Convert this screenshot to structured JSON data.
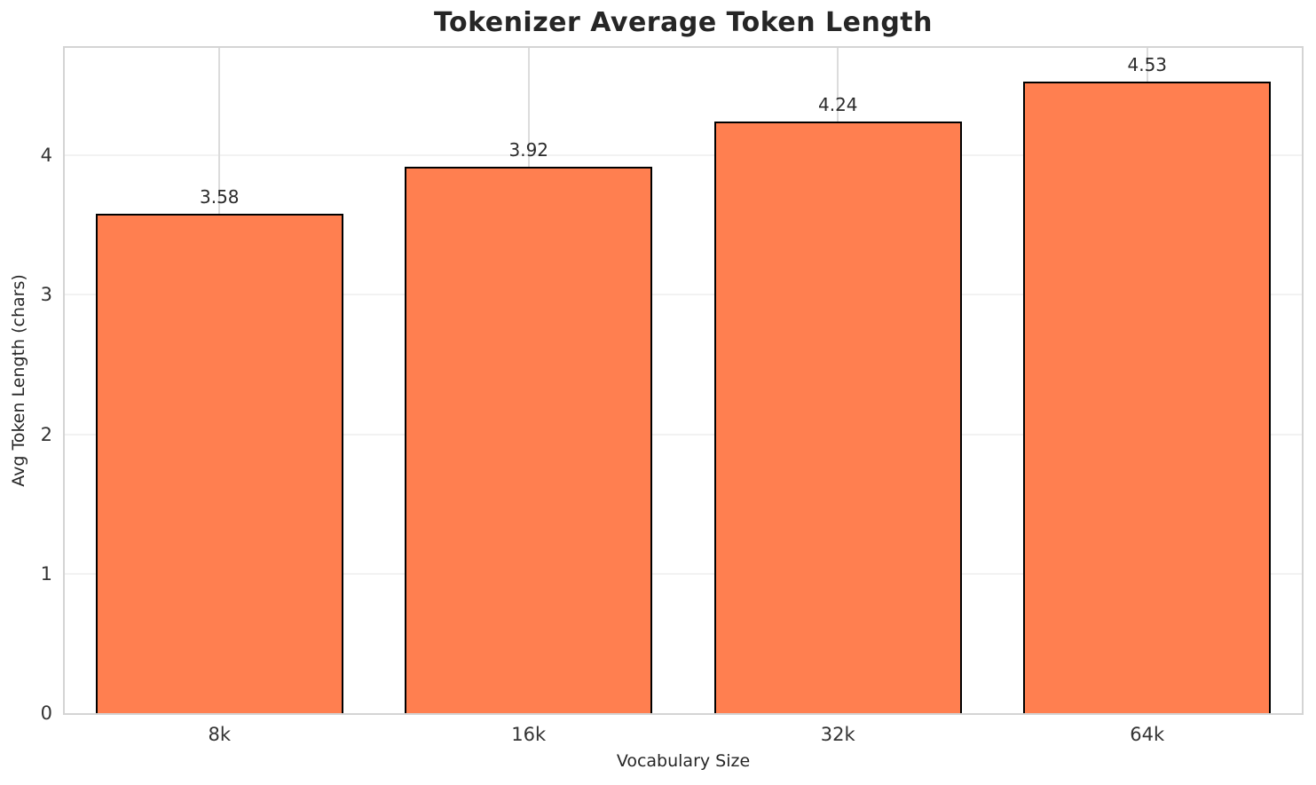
{
  "title": "Tokenizer Average Token Length",
  "chart_data": {
    "type": "bar",
    "title": "Tokenizer Average Token Length",
    "categories": [
      "8k",
      "16k",
      "32k",
      "64k"
    ],
    "values": [
      3.58,
      3.92,
      4.24,
      4.53
    ],
    "value_labels": [
      "3.58",
      "3.92",
      "4.24",
      "4.53"
    ],
    "xlabel": "Vocabulary Size",
    "ylabel": "Avg Token Length (chars)",
    "ylim": [
      0,
      4.77
    ],
    "yticks": [
      0,
      1,
      2,
      3,
      4
    ],
    "grid": "both",
    "legend": null,
    "bar_color": "#FF7F50",
    "bar_edge_color": "#000000",
    "bar_width_fraction": 0.8
  },
  "colors": {
    "background": "#ffffff",
    "spine": "#d4d4d4",
    "hgrid": "#f2f2f2",
    "vgrid": "#dcdcdc",
    "title_text": "#262626",
    "tick_text": "#333333",
    "value_label_text": "#2b2b2b"
  }
}
